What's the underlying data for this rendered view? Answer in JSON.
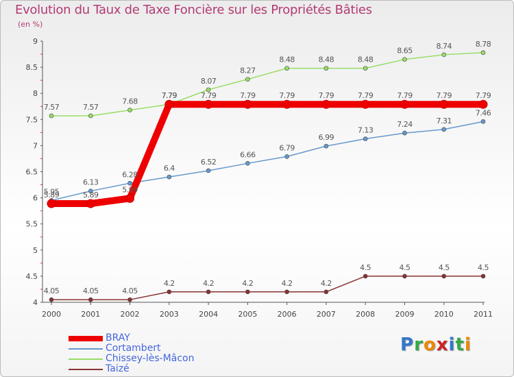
{
  "title": "Evolution du Taux de Taxe Foncière sur les Propriétés Bâties",
  "subtitle": "(en %)",
  "logo": {
    "letters": [
      "P",
      "r",
      "o",
      "x",
      "i",
      "t",
      "i"
    ],
    "colors": [
      "#3377cc",
      "#33aa44",
      "#ee8800",
      "#cc2222",
      "#3377cc",
      "#33aa44",
      "#ee8800"
    ]
  },
  "chart_data": {
    "type": "line",
    "title": "Evolution du Taux de Taxe Foncière sur les Propriétés Bâties",
    "ylabel": "(en %)",
    "xlabel": "",
    "x": [
      "2000",
      "2001",
      "2002",
      "2003",
      "2004",
      "2005",
      "2006",
      "2007",
      "2008",
      "2009",
      "2010",
      "2011"
    ],
    "ylim": [
      4,
      9
    ],
    "yticks": [
      "4",
      "4.5",
      "5",
      "5.5",
      "6",
      "6.5",
      "7",
      "7.5",
      "8",
      "8.5",
      "9"
    ],
    "grid": false,
    "legend": "bottom-left",
    "series": [
      {
        "name": "BRAY",
        "color": "#ee0000",
        "values": [
          5.89,
          5.89,
          5.99,
          7.79,
          7.79,
          7.79,
          7.79,
          7.79,
          7.79,
          7.79,
          7.79,
          7.79
        ],
        "labels": [
          "5.89",
          "5.89",
          "5.99",
          "7.79",
          "7.79",
          "7.79",
          "7.79",
          "7.79",
          "7.79",
          "7.79",
          "7.79",
          "7.79"
        ]
      },
      {
        "name": "Cortambert",
        "color": "#6699cc",
        "values": [
          5.95,
          6.13,
          6.28,
          6.4,
          6.52,
          6.66,
          6.79,
          6.99,
          7.13,
          7.24,
          7.31,
          7.46
        ],
        "labels": [
          "5.95",
          "6.13",
          "6.28",
          "6.4",
          "6.52",
          "6.66",
          "6.79",
          "6.99",
          "7.13",
          "7.24",
          "7.31",
          "7.46"
        ]
      },
      {
        "name": "Chissey-lès-Mâcon",
        "color": "#99dd66",
        "values": [
          7.57,
          7.57,
          7.68,
          7.79,
          8.07,
          8.27,
          8.48,
          8.48,
          8.48,
          8.65,
          8.74,
          8.78
        ],
        "labels": [
          "7.57",
          "7.57",
          "7.68",
          "7.79",
          "8.07",
          "8.27",
          "8.48",
          "8.48",
          "8.48",
          "8.65",
          "8.74",
          "8.78"
        ]
      },
      {
        "name": "Taizé",
        "color": "#883333",
        "values": [
          4.05,
          4.05,
          4.05,
          4.2,
          4.2,
          4.2,
          4.2,
          4.2,
          4.5,
          4.5,
          4.5,
          4.5
        ],
        "labels": [
          "4.05",
          "4.05",
          "4.05",
          "4.2",
          "4.2",
          "4.2",
          "4.2",
          "4.2",
          "4.5",
          "4.5",
          "4.5",
          "4.5"
        ]
      }
    ]
  }
}
